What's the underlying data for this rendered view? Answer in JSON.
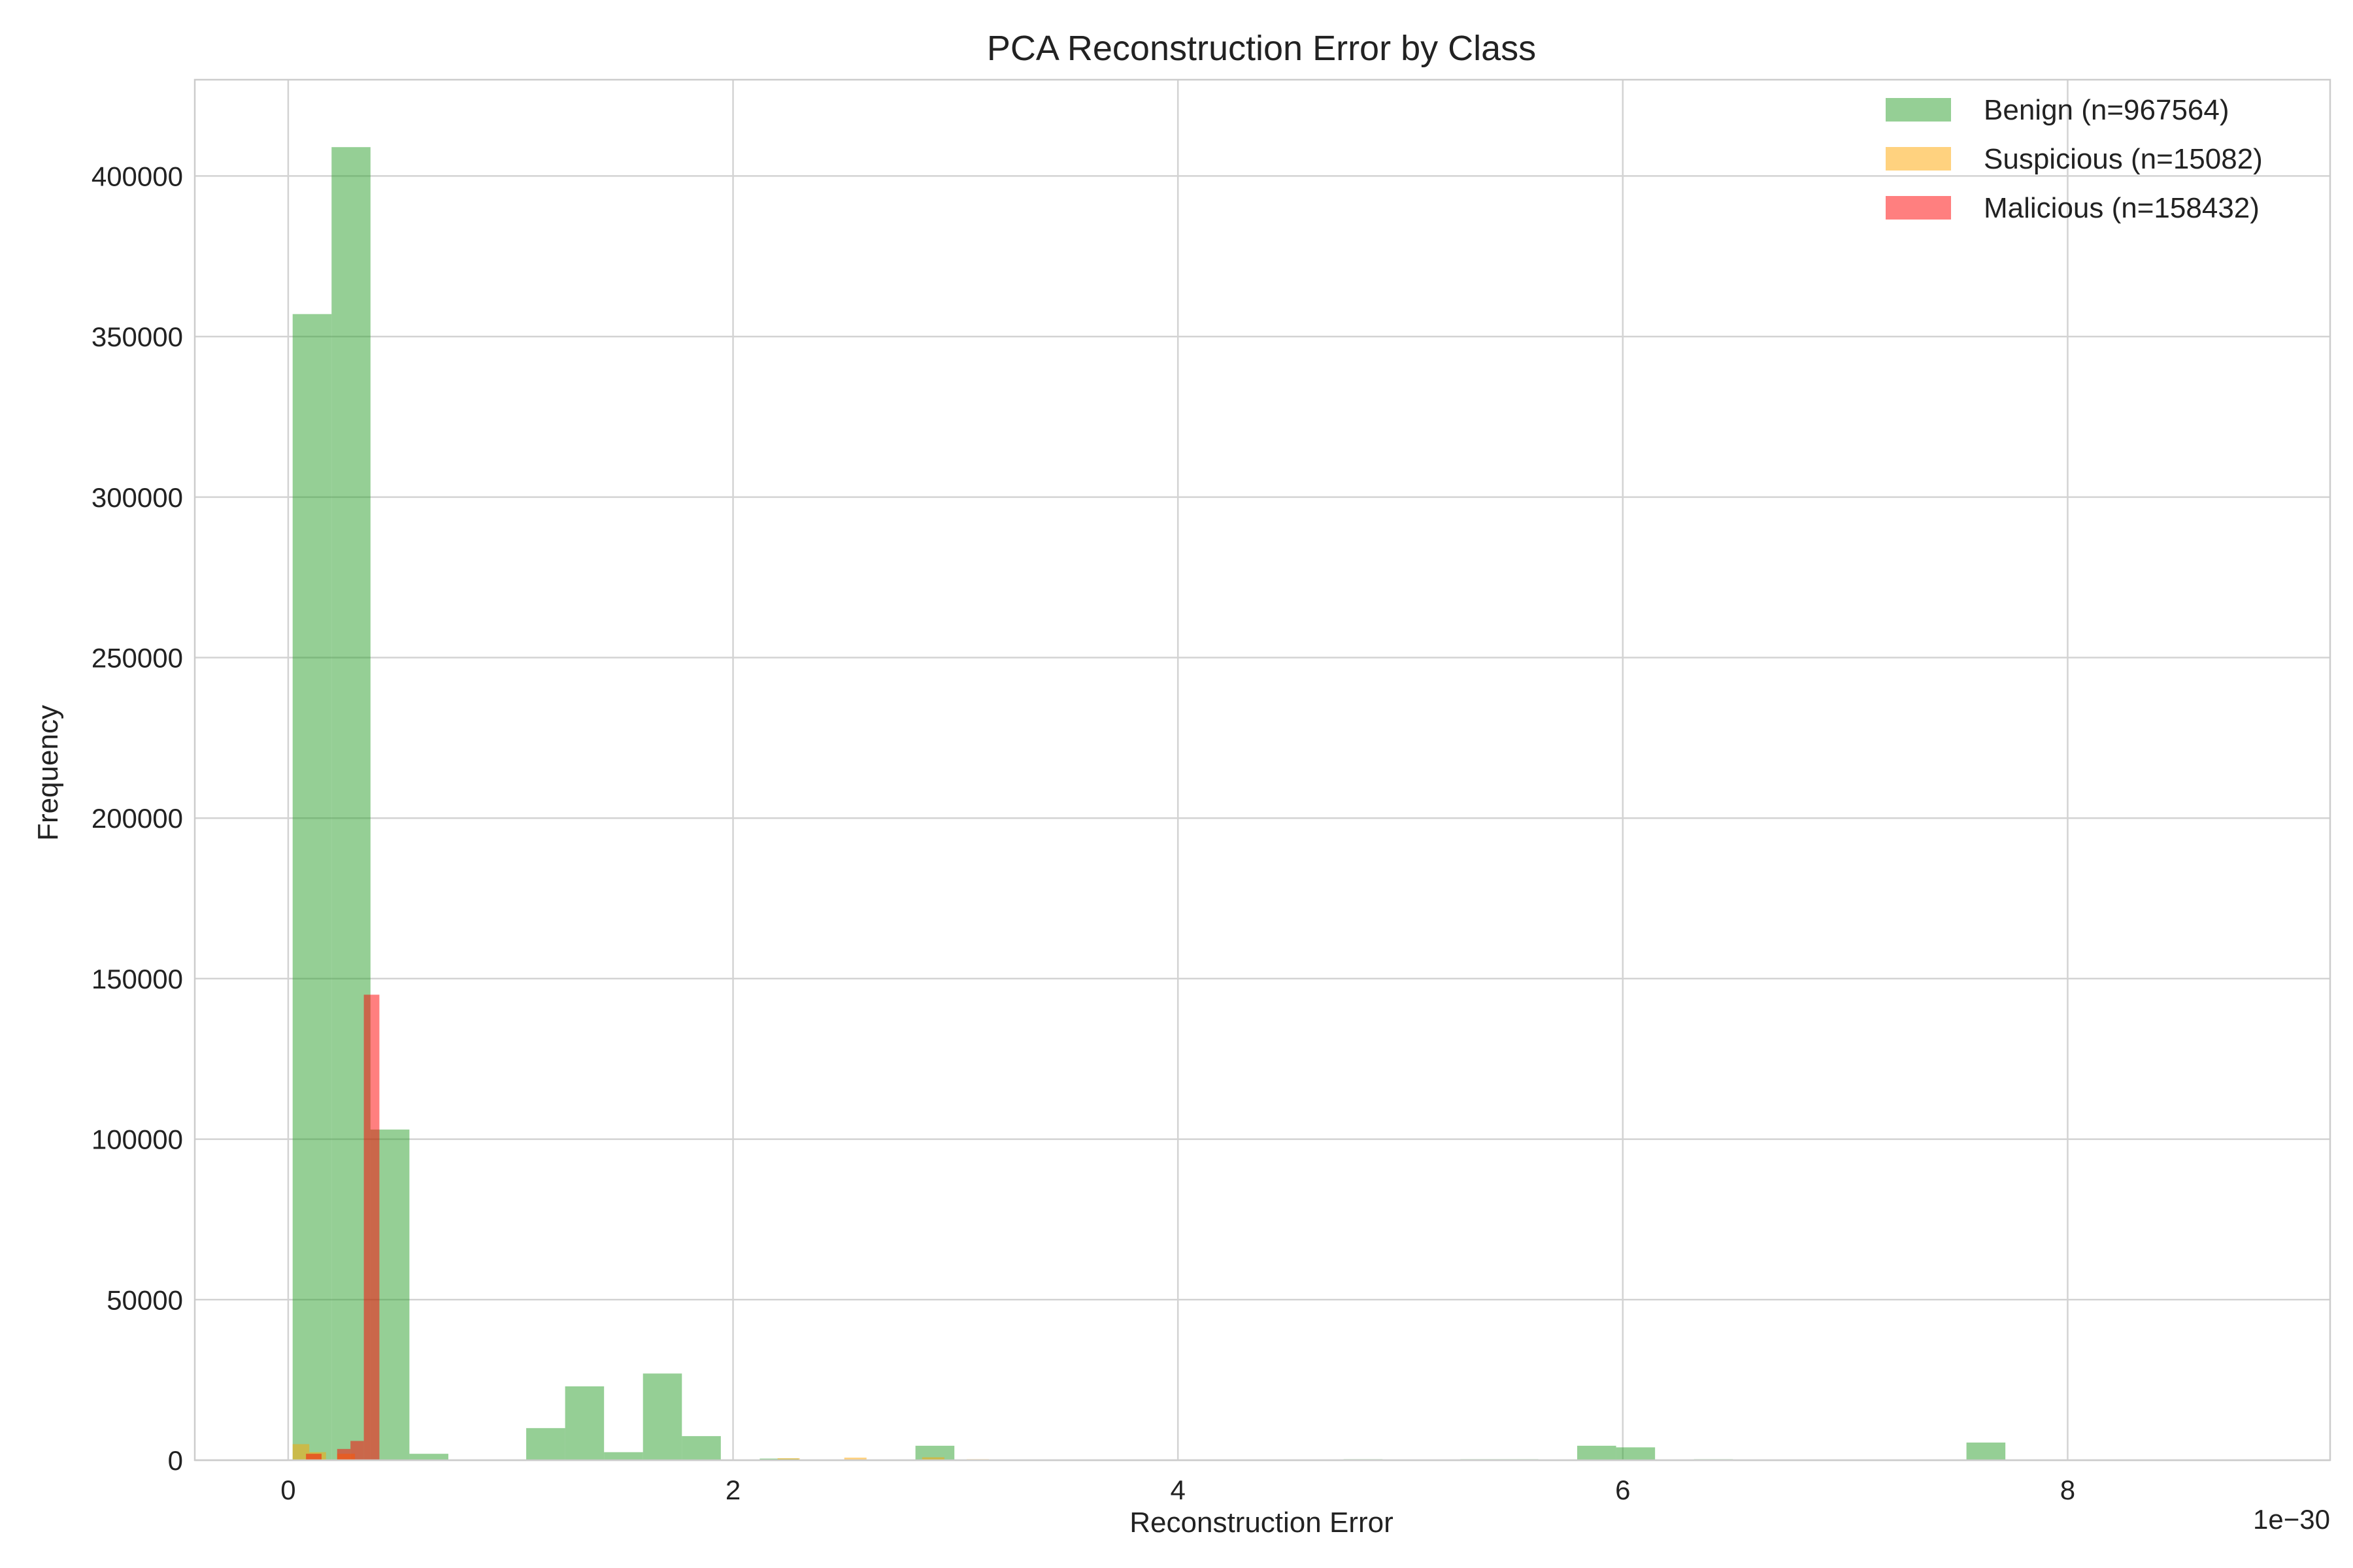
{
  "chart_data": {
    "type": "bar",
    "title": "PCA Reconstruction Error by Class",
    "xlabel": "Reconstruction Error",
    "ylabel": "Frequency",
    "x_scale_label": "1e−30",
    "xlim": [
      -0.42,
      9.18
    ],
    "ylim": [
      0,
      430000
    ],
    "x_ticks": [
      0,
      2,
      4,
      6,
      8
    ],
    "x_tick_labels": [
      "0",
      "2",
      "4",
      "6",
      "8"
    ],
    "y_ticks": [
      0,
      50000,
      100000,
      150000,
      200000,
      250000,
      300000,
      350000,
      400000
    ],
    "y_tick_labels": [
      "0",
      "50000",
      "100000",
      "150000",
      "200000",
      "250000",
      "300000",
      "350000",
      "400000"
    ],
    "grid": true,
    "legend_position": "top-right",
    "series": [
      {
        "name": "Benign (n=967564)",
        "color": "#2ca02c",
        "bars": [
          {
            "x0": 0.02,
            "x1": 0.195,
            "value": 357000
          },
          {
            "x0": 0.195,
            "x1": 0.37,
            "value": 409000
          },
          {
            "x0": 0.37,
            "x1": 0.545,
            "value": 103000
          },
          {
            "x0": 0.545,
            "x1": 0.72,
            "value": 2000
          },
          {
            "x0": 1.07,
            "x1": 1.245,
            "value": 10000
          },
          {
            "x0": 1.245,
            "x1": 1.42,
            "value": 23000
          },
          {
            "x0": 1.42,
            "x1": 1.595,
            "value": 2500
          },
          {
            "x0": 1.595,
            "x1": 1.77,
            "value": 27000
          },
          {
            "x0": 1.77,
            "x1": 1.945,
            "value": 7500
          },
          {
            "x0": 2.12,
            "x1": 2.295,
            "value": 500
          },
          {
            "x0": 2.82,
            "x1": 2.995,
            "value": 4500
          },
          {
            "x0": 4.745,
            "x1": 4.92,
            "value": 300
          },
          {
            "x0": 5.27,
            "x1": 5.445,
            "value": 300
          },
          {
            "x0": 5.445,
            "x1": 5.62,
            "value": 300
          },
          {
            "x0": 5.795,
            "x1": 5.97,
            "value": 4500
          },
          {
            "x0": 5.97,
            "x1": 6.145,
            "value": 4000
          },
          {
            "x0": 6.32,
            "x1": 6.495,
            "value": 300
          },
          {
            "x0": 7.545,
            "x1": 7.72,
            "value": 5500
          }
        ]
      },
      {
        "name": "Suspicious (n=15082)",
        "color": "#ffa500",
        "bars": [
          {
            "x0": 0.02,
            "x1": 0.095,
            "value": 5000
          },
          {
            "x0": 0.095,
            "x1": 0.17,
            "value": 2500
          },
          {
            "x0": 0.22,
            "x1": 0.3,
            "value": 2000
          },
          {
            "x0": 2.2,
            "x1": 2.3,
            "value": 600
          },
          {
            "x0": 2.5,
            "x1": 2.6,
            "value": 800
          },
          {
            "x0": 2.85,
            "x1": 2.95,
            "value": 900
          },
          {
            "x0": 3.05,
            "x1": 3.15,
            "value": 300
          }
        ]
      },
      {
        "name": "Malicious (n=158432)",
        "color": "#ff0000",
        "bars": [
          {
            "x0": 0.08,
            "x1": 0.15,
            "value": 2000
          },
          {
            "x0": 0.22,
            "x1": 0.28,
            "value": 3500
          },
          {
            "x0": 0.28,
            "x1": 0.34,
            "value": 6000
          },
          {
            "x0": 0.34,
            "x1": 0.41,
            "value": 145000
          }
        ]
      }
    ]
  }
}
